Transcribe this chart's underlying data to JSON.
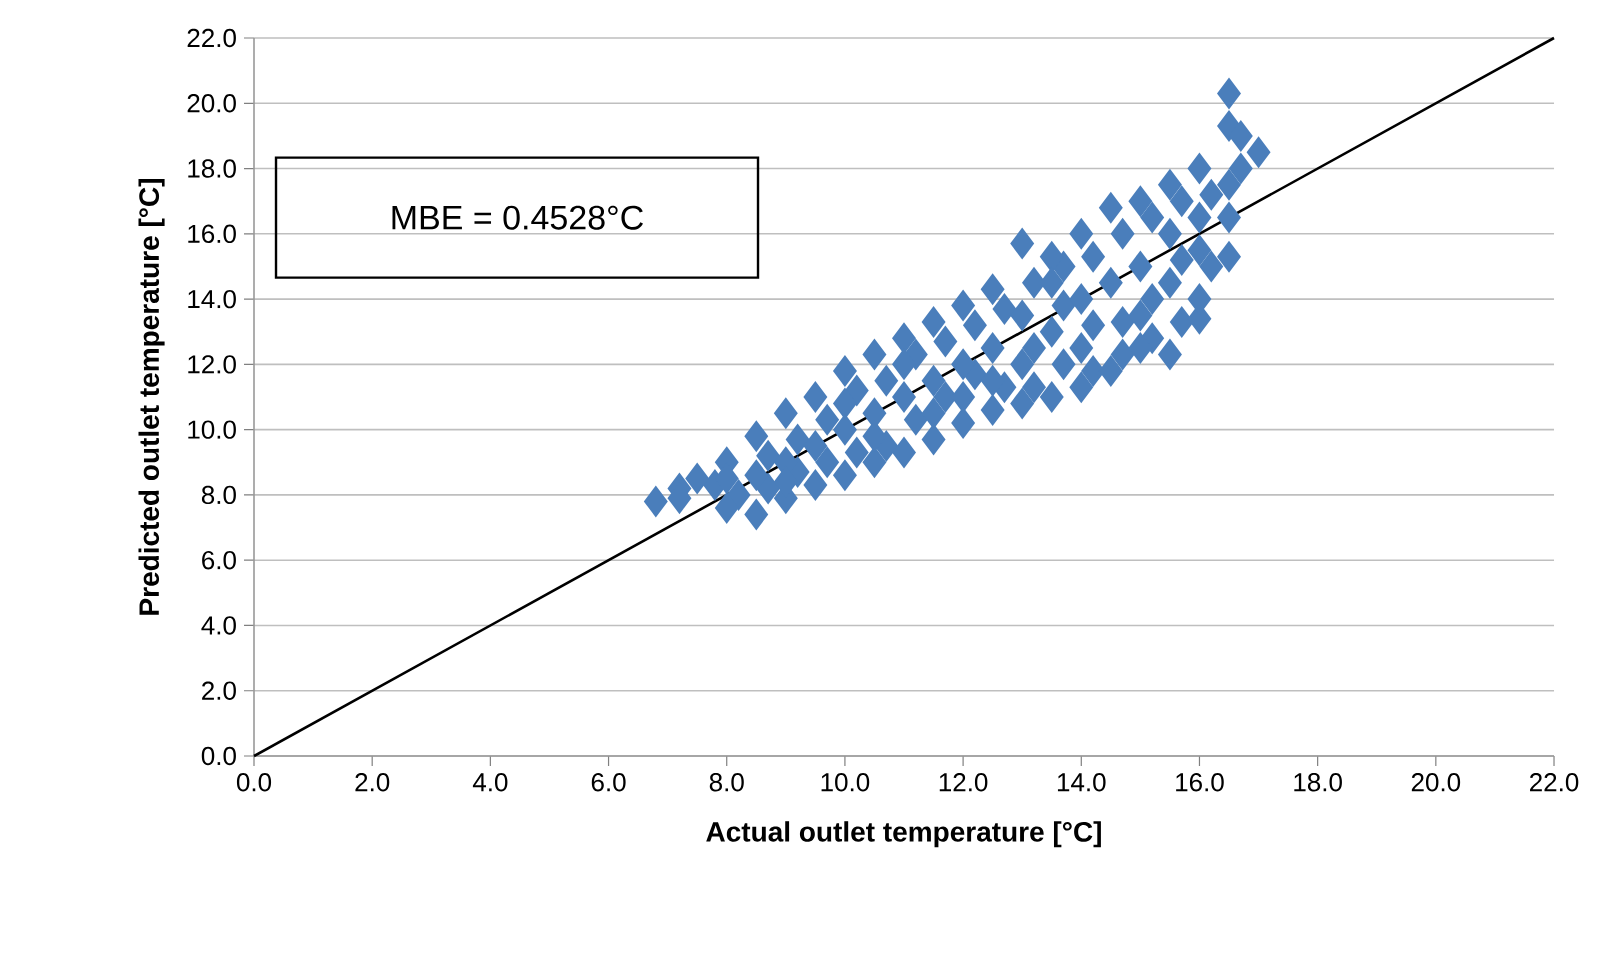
{
  "chart_data": {
    "type": "scatter",
    "xlabel": "Actual outlet temperature [°C]",
    "ylabel": "Predicted outlet temperature [°C]",
    "annotations": [
      "MBE = 0.4528°C"
    ],
    "xlim": [
      0,
      22
    ],
    "ylim": [
      0,
      22
    ],
    "xticks": [
      {
        "value": 0,
        "label": "0.0"
      },
      {
        "value": 2,
        "label": "2.0"
      },
      {
        "value": 4,
        "label": "4.0"
      },
      {
        "value": 6,
        "label": "6.0"
      },
      {
        "value": 8,
        "label": "8.0"
      },
      {
        "value": 10,
        "label": "10.0"
      },
      {
        "value": 12,
        "label": "12.0"
      },
      {
        "value": 14,
        "label": "14.0"
      },
      {
        "value": 16,
        "label": "16.0"
      },
      {
        "value": 18,
        "label": "18.0"
      },
      {
        "value": 20,
        "label": "20.0"
      },
      {
        "value": 22,
        "label": "22.0"
      }
    ],
    "yticks": [
      {
        "value": 0,
        "label": "0.0"
      },
      {
        "value": 2,
        "label": "2.0"
      },
      {
        "value": 4,
        "label": "4.0"
      },
      {
        "value": 6,
        "label": "6.0"
      },
      {
        "value": 8,
        "label": "8.0"
      },
      {
        "value": 10,
        "label": "10.0"
      },
      {
        "value": 12,
        "label": "12.0"
      },
      {
        "value": 14,
        "label": "14.0"
      },
      {
        "value": 16,
        "label": "16.0"
      },
      {
        "value": 18,
        "label": "18.0"
      },
      {
        "value": 20,
        "label": "20.0"
      },
      {
        "value": 22,
        "label": "22.0"
      }
    ],
    "grid": "y",
    "series": [
      {
        "type": "line",
        "color": "#000000",
        "marker": "none",
        "x": [
          0,
          22
        ],
        "values": [
          0,
          22
        ]
      },
      {
        "color": "#4a7ebb",
        "marker": "diamond",
        "x": [
          7.2,
          7.8,
          8.2,
          8.7,
          8.7,
          9.2,
          9.2,
          9.7,
          9.7,
          10.2,
          10.2,
          10.7,
          10.7,
          11.2,
          11.2,
          11.7,
          11.7,
          12.2,
          12.2,
          12.7,
          12.7,
          13.2,
          13.2,
          13.2,
          13.7,
          13.7,
          13.7,
          14.2,
          14.2,
          14.2,
          14.7,
          14.7,
          14.7,
          15.2,
          15.2,
          15.2,
          15.7,
          15.7,
          15.7,
          16.2,
          16.2,
          16.7,
          16.5,
          16.0,
          6.8,
          7.5,
          8,
          8.5,
          9,
          9.5,
          10,
          10.5,
          11,
          11.5,
          12,
          12.5,
          13,
          13.5,
          14,
          14.5,
          15,
          15.5,
          16,
          16.5,
          16.7,
          17,
          7.2,
          8,
          8.5,
          9,
          9.5,
          10,
          10.5,
          11,
          11.5,
          12,
          12.5,
          13,
          13.5,
          14,
          14.5,
          15,
          15.5,
          16,
          16.5,
          8,
          9,
          9.5,
          10,
          10,
          10.5,
          11,
          11,
          11.5,
          12,
          12,
          12.5,
          13,
          13,
          13.5,
          14,
          14,
          14.5,
          15,
          15,
          15.5,
          15.5,
          16,
          16,
          16.5,
          16.5,
          13.5,
          12.5,
          11.5,
          10.5,
          9,
          8.5
        ],
        "values": [
          8.2,
          8.3,
          8.0,
          8.2,
          9.2,
          9.7,
          8.7,
          10.3,
          9.0,
          11.2,
          9.3,
          11.5,
          9.5,
          12.3,
          10.3,
          12.7,
          11,
          13.2,
          11.7,
          13.7,
          11.3,
          14.5,
          12.5,
          11.3,
          15,
          12,
          13.8,
          15.3,
          13.2,
          11.8,
          16,
          13.3,
          12.3,
          16.5,
          14,
          12.8,
          17,
          15.2,
          13.3,
          17.2,
          15,
          18,
          19.3,
          13.4,
          7.8,
          8.5,
          9,
          9.8,
          10.5,
          11,
          11.8,
          12.3,
          12.8,
          13.3,
          13.8,
          14.3,
          15.7,
          15.3,
          16,
          16.8,
          17,
          17.5,
          18,
          20.3,
          19,
          18.5,
          7.9,
          7.6,
          7.4,
          7.9,
          8.3,
          8.6,
          9,
          9.3,
          9.7,
          10.2,
          10.6,
          10.8,
          11,
          11.3,
          11.8,
          12.5,
          12.3,
          14,
          15.3,
          8.5,
          9,
          9.5,
          10,
          10.8,
          10.5,
          11,
          12,
          11.5,
          12,
          11,
          12.5,
          12,
          13.5,
          13,
          14,
          12.5,
          14.5,
          15,
          13.5,
          16,
          14.5,
          16.5,
          15.5,
          17.5,
          16.5,
          14.5,
          11.5,
          10.5,
          9.8,
          8.4,
          8.6
        ]
      }
    ]
  }
}
